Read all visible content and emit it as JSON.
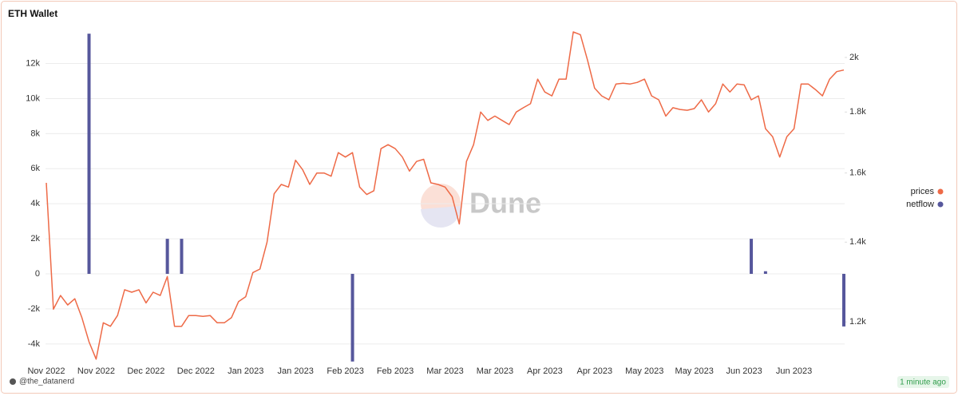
{
  "chart_data": {
    "type": "combo",
    "title": "ETH Wallet",
    "watermark": "Dune",
    "author": "@the_datanerd",
    "updated": "1 minute ago",
    "categories": [
      "Nov 2022",
      null,
      null,
      null,
      null,
      null,
      null,
      "Nov 2022",
      null,
      null,
      null,
      null,
      null,
      null,
      "Dec 2022",
      null,
      null,
      null,
      null,
      null,
      null,
      "Dec 2022",
      null,
      null,
      null,
      null,
      null,
      null,
      "Jan 2023",
      null,
      null,
      null,
      null,
      null,
      null,
      "Jan 2023",
      null,
      null,
      null,
      null,
      null,
      null,
      "Feb 2023",
      null,
      null,
      null,
      null,
      null,
      null,
      "Feb 2023",
      null,
      null,
      null,
      null,
      null,
      null,
      "Mar 2023",
      null,
      null,
      null,
      null,
      null,
      null,
      "Mar 2023",
      null,
      null,
      null,
      null,
      null,
      null,
      "Apr 2023",
      null,
      null,
      null,
      null,
      null,
      null,
      "Apr 2023",
      null,
      null,
      null,
      null,
      null,
      null,
      "May 2023",
      null,
      null,
      null,
      null,
      null,
      null,
      "May 2023",
      null,
      null,
      null,
      null,
      null,
      null,
      "Jun 2023",
      null,
      null,
      null,
      null,
      null,
      null,
      "Jun 2023",
      null,
      null,
      null,
      null,
      null,
      null,
      null
    ],
    "series": [
      {
        "name": "prices",
        "type": "line",
        "axis": "y2",
        "color": "#ee6a47",
        "values": [
          1570,
          1230,
          1263,
          1240,
          1255,
          1210,
          1155,
          1117,
          1198,
          1190,
          1215,
          1277,
          1271,
          1277,
          1245,
          1271,
          1263,
          1310,
          1190,
          1190,
          1215,
          1215,
          1213,
          1215,
          1198,
          1198,
          1210,
          1248,
          1260,
          1320,
          1329,
          1400,
          1537,
          1565,
          1557,
          1640,
          1610,
          1565,
          1600,
          1600,
          1590,
          1664,
          1650,
          1664,
          1557,
          1535,
          1546,
          1677,
          1690,
          1677,
          1650,
          1606,
          1636,
          1643,
          1570,
          1565,
          1557,
          1528,
          1450,
          1636,
          1690,
          1800,
          1771,
          1786,
          1771,
          1757,
          1800,
          1815,
          1829,
          1918,
          1871,
          1857,
          1918,
          1918,
          2101,
          2090,
          1990,
          1885,
          1857,
          1843,
          1900,
          1903,
          1900,
          1906,
          1918,
          1857,
          1843,
          1786,
          1815,
          1809,
          1806,
          1812,
          1843,
          1800,
          1829,
          1900,
          1871,
          1900,
          1897,
          1843,
          1857,
          1743,
          1716,
          1650,
          1716,
          1743,
          1900,
          1900,
          1880,
          1857,
          1918,
          1946,
          1952
        ]
      },
      {
        "name": "netflow",
        "type": "bar",
        "color": "#56579c",
        "values": [
          null,
          null,
          null,
          null,
          null,
          null,
          13700,
          null,
          null,
          null,
          null,
          null,
          null,
          null,
          null,
          null,
          null,
          2000,
          null,
          2000,
          null,
          null,
          null,
          null,
          null,
          null,
          null,
          null,
          null,
          null,
          null,
          null,
          null,
          null,
          null,
          null,
          null,
          null,
          null,
          null,
          null,
          null,
          null,
          -5000,
          null,
          null,
          null,
          null,
          null,
          null,
          null,
          null,
          null,
          null,
          null,
          null,
          null,
          null,
          null,
          null,
          null,
          null,
          null,
          null,
          null,
          null,
          null,
          null,
          null,
          null,
          null,
          null,
          null,
          null,
          null,
          null,
          null,
          null,
          null,
          null,
          null,
          null,
          null,
          null,
          null,
          null,
          null,
          null,
          null,
          null,
          null,
          null,
          null,
          null,
          null,
          null,
          null,
          null,
          null,
          2000,
          null,
          150,
          null,
          null,
          null,
          null,
          null,
          null,
          null,
          null,
          null,
          null,
          -3000
        ]
      }
    ],
    "ylim": [
      -5100,
      13800
    ],
    "yticks": [
      {
        "value": -4000,
        "label": "-4k"
      },
      {
        "value": -2000,
        "label": "-2k"
      },
      0,
      {
        "value": 2000,
        "label": "2k"
      },
      {
        "value": 4000,
        "label": "4k"
      },
      {
        "value": 6000,
        "label": "6k"
      },
      {
        "value": 8000,
        "label": "8k"
      },
      {
        "value": 10000,
        "label": "10k"
      },
      {
        "value": 12000,
        "label": "12k"
      }
    ],
    "y2lim": [
      1108,
      2101
    ],
    "y2log": true,
    "y2ticks": [
      {
        "value": 1200,
        "label": "1.2k"
      },
      {
        "value": 1400,
        "label": "1.4k"
      },
      {
        "value": 1600,
        "label": "1.6k"
      },
      {
        "value": 1800,
        "label": "1.8k"
      },
      {
        "value": 2000,
        "label": "2k"
      }
    ],
    "grid": true,
    "legend": "right"
  }
}
